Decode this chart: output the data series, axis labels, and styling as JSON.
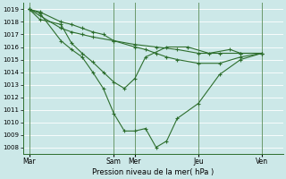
{
  "title": "",
  "xlabel": "Pression niveau de la mer( hPa )",
  "bg_color": "#cce8e8",
  "line_color": "#2d6e2d",
  "grid_color": "#ffffff",
  "ylim": [
    1007.5,
    1019.5
  ],
  "yticks": [
    1008,
    1009,
    1010,
    1011,
    1012,
    1013,
    1014,
    1015,
    1016,
    1017,
    1018,
    1019
  ],
  "xtick_labels": [
    "Mar",
    "Sam",
    "Mer",
    "Jeu",
    "Ven"
  ],
  "xtick_pos": [
    0,
    4,
    5,
    8,
    11
  ],
  "xlim": [
    -0.3,
    12.0
  ],
  "lines": [
    {
      "x": [
        0,
        0.5,
        1.5,
        2,
        2.5,
        3,
        3.5,
        4,
        4.5,
        5,
        5.5,
        6,
        6.5,
        7,
        8,
        9,
        10,
        11
      ],
      "y": [
        1019,
        1018.7,
        1016.5,
        1015.8,
        1015.2,
        1014.0,
        1012.7,
        1010.7,
        1009.3,
        1009.3,
        1009.5,
        1008.0,
        1008.5,
        1010.3,
        1011.5,
        1013.8,
        1015.0,
        1015.5
      ]
    },
    {
      "x": [
        0,
        0.5,
        1.5,
        2,
        2.5,
        3,
        3.5,
        4,
        4.5,
        5,
        5.5,
        6.5,
        7.5,
        8.5,
        9.5,
        10,
        11
      ],
      "y": [
        1019,
        1018.2,
        1017.8,
        1016.3,
        1015.5,
        1014.8,
        1014.0,
        1013.2,
        1012.7,
        1013.5,
        1015.2,
        1016.0,
        1016.0,
        1015.5,
        1015.8,
        1015.5,
        1015.5
      ]
    },
    {
      "x": [
        0,
        0.5,
        1.5,
        2,
        2.5,
        3,
        3.5,
        4,
        5,
        5.5,
        6,
        6.5,
        7,
        8,
        9,
        10,
        11
      ],
      "y": [
        1019,
        1018.8,
        1018.0,
        1017.8,
        1017.5,
        1017.2,
        1017.0,
        1016.5,
        1016.0,
        1015.8,
        1015.5,
        1015.2,
        1015.0,
        1014.7,
        1014.7,
        1015.2,
        1015.5
      ]
    },
    {
      "x": [
        0,
        0.5,
        1.5,
        2,
        2.5,
        3,
        4,
        5,
        6,
        7,
        8,
        9,
        10,
        11
      ],
      "y": [
        1019,
        1018.5,
        1017.5,
        1017.2,
        1017.0,
        1016.8,
        1016.5,
        1016.2,
        1016.0,
        1015.8,
        1015.5,
        1015.5,
        1015.5,
        1015.5
      ]
    }
  ]
}
